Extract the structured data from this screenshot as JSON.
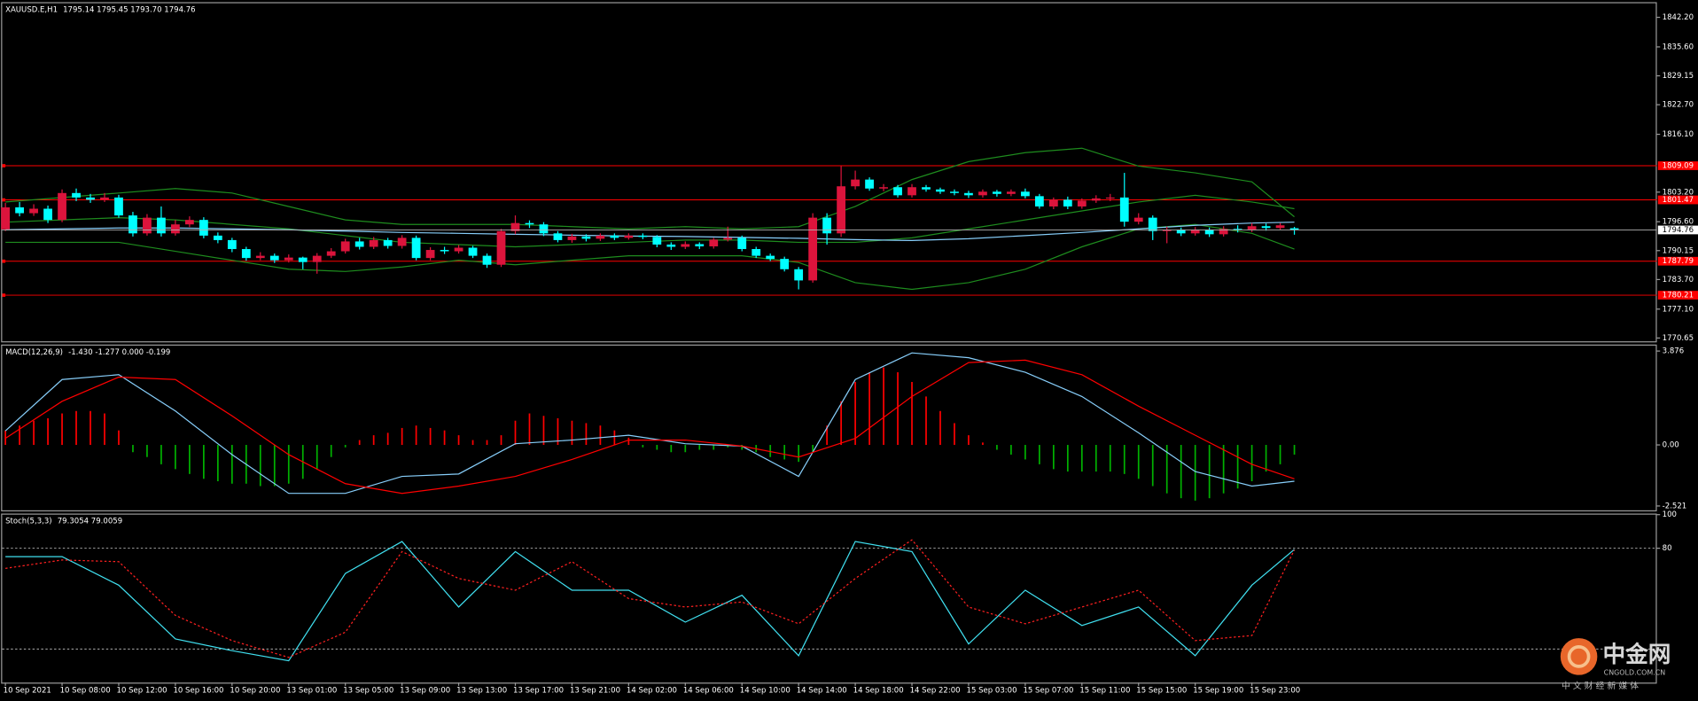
{
  "chart_data": [
    {
      "type": "candlestick",
      "title": "XAUUSD.E,H1",
      "subtitle": "1795.14 1795.45 1793.70 1794.76",
      "categories": [
        "10 Sep 2021",
        null,
        null,
        null,
        "10 Sep 08:00",
        null,
        null,
        null,
        "10 Sep 12:00",
        null,
        null,
        null,
        "10 Sep 16:00",
        null,
        null,
        null,
        "10 Sep 20:00",
        null,
        null,
        null,
        "13 Sep 01:00",
        null,
        null,
        null,
        "13 Sep 05:00",
        null,
        null,
        null,
        "13 Sep 09:00",
        null,
        null,
        null,
        "13 Sep 13:00",
        null,
        null,
        null,
        "13 Sep 17:00",
        null,
        null,
        null,
        "13 Sep 21:00",
        null,
        null,
        null,
        "14 Sep 02:00",
        null,
        null,
        null,
        "14 Sep 06:00",
        null,
        null,
        null,
        "14 Sep 10:00",
        null,
        null,
        null,
        "14 Sep 14:00",
        null,
        null,
        null,
        "14 Sep 18:00",
        null,
        null,
        null,
        "14 Sep 22:00",
        null,
        null,
        null,
        "15 Sep 03:00",
        null,
        null,
        null,
        "15 Sep 07:00",
        null,
        null,
        null,
        "15 Sep 11:00",
        null,
        null,
        null,
        "15 Sep 15:00",
        null,
        null,
        null,
        "15 Sep 19:00",
        null,
        null,
        null,
        "15 Sep 23:00",
        null,
        null,
        null
      ],
      "open": [
        1794.9,
        1799.8,
        1798.5,
        1799.5,
        1797.0,
        1803.0,
        1802.0,
        1801.5,
        1802.0,
        1798.0,
        1794.0,
        1797.5,
        1794.0,
        1796.0,
        1797.0,
        1793.5,
        1792.5,
        1790.5,
        1788.5,
        1789.0,
        1788.0,
        1788.6,
        1787.6,
        1789.0,
        1790.0,
        1792.2,
        1791.0,
        1792.5,
        1791.2,
        1793.0,
        1788.5,
        1790.3,
        1790.0,
        1790.8,
        1789.0,
        1787.0,
        1794.5,
        1796.3,
        1796.0,
        1794.0,
        1792.5,
        1793.3,
        1792.8,
        1793.5,
        1793.0,
        1793.5,
        1793.2,
        1791.5,
        1791.0,
        1791.6,
        1791.1,
        1792.6,
        1793.0,
        1790.5,
        1789.0,
        1788.3,
        1786.0,
        1783.5,
        1797.5,
        1794.0,
        1804.5,
        1806.0,
        1804.0,
        1804.3,
        1802.5,
        1804.3,
        1803.8,
        1803.3,
        1803.0,
        1802.5,
        1803.3,
        1802.8,
        1803.3,
        1802.3,
        1800.0,
        1801.5,
        1800.0,
        1801.3,
        1801.8,
        1802.0,
        1796.6,
        1797.5,
        1794.5,
        1794.8,
        1794.0,
        1794.8,
        1793.8,
        1795.0,
        1794.8,
        1795.6,
        1795.2,
        1795.14
      ],
      "high": [
        1800.8,
        1801.0,
        1800.5,
        1800.2,
        1803.8,
        1804.0,
        1802.8,
        1803.0,
        1802.6,
        1798.8,
        1798.3,
        1800.0,
        1797.0,
        1797.8,
        1797.6,
        1794.2,
        1793.0,
        1791.0,
        1789.8,
        1789.5,
        1789.3,
        1788.8,
        1789.6,
        1790.7,
        1792.8,
        1793.0,
        1793.2,
        1793.0,
        1793.6,
        1793.5,
        1790.9,
        1791.0,
        1791.4,
        1791.2,
        1789.5,
        1795.0,
        1798.0,
        1796.9,
        1796.5,
        1794.5,
        1793.9,
        1793.8,
        1794.0,
        1794.0,
        1794.0,
        1794.0,
        1793.6,
        1792.0,
        1792.2,
        1792.0,
        1793.0,
        1795.5,
        1793.5,
        1791.0,
        1789.5,
        1788.8,
        1786.5,
        1798.5,
        1798.5,
        1809.0,
        1808.0,
        1806.5,
        1805.0,
        1804.8,
        1805.0,
        1804.8,
        1804.2,
        1803.8,
        1803.5,
        1803.8,
        1803.7,
        1803.8,
        1804.0,
        1802.8,
        1802.0,
        1802.2,
        1801.8,
        1802.5,
        1802.8,
        1807.5,
        1798.5,
        1798.0,
        1795.5,
        1795.3,
        1795.4,
        1795.3,
        1795.6,
        1795.8,
        1796.3,
        1796.2,
        1796.3,
        1795.45
      ],
      "low": [
        1794.5,
        1797.8,
        1797.9,
        1796.3,
        1796.5,
        1801.2,
        1800.8,
        1801.0,
        1797.5,
        1793.3,
        1793.5,
        1793.3,
        1793.5,
        1795.4,
        1792.9,
        1791.8,
        1789.8,
        1787.9,
        1788.0,
        1787.4,
        1787.5,
        1786.0,
        1785.0,
        1788.5,
        1789.5,
        1790.4,
        1790.5,
        1790.6,
        1790.6,
        1788.0,
        1788.0,
        1789.4,
        1789.5,
        1788.5,
        1786.3,
        1786.5,
        1793.8,
        1795.2,
        1793.4,
        1792.0,
        1791.9,
        1792.2,
        1792.3,
        1792.5,
        1792.6,
        1792.7,
        1790.9,
        1790.3,
        1790.5,
        1790.5,
        1790.6,
        1792.2,
        1790.0,
        1788.5,
        1787.8,
        1785.5,
        1781.5,
        1783.0,
        1791.5,
        1793.2,
        1803.8,
        1803.5,
        1803.4,
        1802.0,
        1802.0,
        1803.3,
        1802.8,
        1802.5,
        1801.9,
        1802.0,
        1802.2,
        1802.3,
        1801.8,
        1799.5,
        1799.4,
        1799.4,
        1799.5,
        1800.8,
        1801.2,
        1795.5,
        1796.0,
        1792.5,
        1791.8,
        1793.4,
        1793.5,
        1793.2,
        1793.3,
        1794.2,
        1794.3,
        1794.6,
        1794.8,
        1793.7
      ],
      "close": [
        1799.8,
        1798.5,
        1799.5,
        1797.0,
        1803.0,
        1802.0,
        1801.5,
        1802.0,
        1798.0,
        1794.0,
        1797.5,
        1794.0,
        1796.0,
        1797.0,
        1793.5,
        1792.5,
        1790.5,
        1788.5,
        1789.0,
        1788.0,
        1788.6,
        1787.6,
        1789.0,
        1790.0,
        1792.2,
        1791.0,
        1792.5,
        1791.2,
        1793.0,
        1788.5,
        1790.3,
        1790.0,
        1790.8,
        1789.0,
        1787.0,
        1794.5,
        1796.3,
        1796.0,
        1794.0,
        1792.5,
        1793.3,
        1792.8,
        1793.5,
        1793.0,
        1793.5,
        1793.2,
        1791.5,
        1791.0,
        1791.6,
        1791.1,
        1792.6,
        1793.0,
        1790.5,
        1789.0,
        1788.3,
        1786.0,
        1783.5,
        1797.5,
        1794.0,
        1804.5,
        1806.0,
        1804.0,
        1804.3,
        1802.5,
        1804.3,
        1803.8,
        1803.3,
        1803.0,
        1802.5,
        1803.3,
        1802.8,
        1803.3,
        1802.3,
        1800.0,
        1801.5,
        1800.0,
        1801.3,
        1801.8,
        1802.0,
        1796.6,
        1797.5,
        1794.5,
        1794.8,
        1794.0,
        1794.8,
        1793.8,
        1795.0,
        1794.8,
        1795.6,
        1795.2,
        1795.8,
        1794.76
      ],
      "up_color": "#dc143c",
      "down_color": "#00ffff",
      "overlays": [
        {
          "color": "#1e8c1e",
          "x": [
            0,
            4,
            8,
            12,
            16,
            20,
            24,
            28,
            32,
            36,
            40,
            44,
            48,
            52,
            56,
            60,
            64,
            68,
            72,
            76,
            80,
            84,
            88,
            91
          ],
          "values": [
            1801,
            1802,
            1803,
            1804,
            1803,
            1800,
            1797,
            1796,
            1796,
            1796,
            1795.5,
            1795,
            1795.5,
            1795,
            1795.5,
            1800,
            1806,
            1810,
            1812,
            1813,
            1809,
            1807.5,
            1805.5,
            1797.7
          ]
        },
        {
          "color": "#1e8c1e",
          "x": [
            0,
            4,
            8,
            12,
            16,
            20,
            24,
            28,
            32,
            36,
            40,
            44,
            48,
            52,
            56,
            60,
            64,
            68,
            72,
            76,
            80,
            84,
            88,
            91
          ],
          "values": [
            1796.5,
            1797,
            1797.5,
            1797,
            1796,
            1795,
            1793.5,
            1792,
            1791.5,
            1791,
            1791.5,
            1792,
            1792.5,
            1792.5,
            1792,
            1792,
            1793,
            1795,
            1797,
            1799,
            1801,
            1802.5,
            1801,
            1799.5
          ]
        },
        {
          "color": "#1e8c1e",
          "x": [
            0,
            4,
            8,
            12,
            16,
            20,
            24,
            28,
            32,
            36,
            40,
            44,
            48,
            52,
            56,
            60,
            64,
            68,
            72,
            76,
            80,
            84,
            88,
            91
          ],
          "values": [
            1792,
            1792,
            1792,
            1790,
            1788,
            1786,
            1785.5,
            1786.5,
            1788,
            1787,
            1788,
            1789,
            1789,
            1789,
            1787.5,
            1783,
            1781.5,
            1783,
            1786,
            1791,
            1795,
            1796,
            1794,
            1790.5
          ]
        },
        {
          "color": "#87cefa",
          "x": [
            0,
            4,
            8,
            12,
            16,
            20,
            24,
            28,
            32,
            36,
            40,
            44,
            48,
            52,
            56,
            60,
            64,
            68,
            72,
            76,
            80,
            84,
            88,
            91
          ],
          "values": [
            1794.8,
            1795.0,
            1795.2,
            1795.2,
            1795.0,
            1794.8,
            1794.5,
            1794.2,
            1794.0,
            1793.8,
            1793.6,
            1793.4,
            1793.3,
            1793.1,
            1792.9,
            1792.6,
            1792.4,
            1792.8,
            1793.5,
            1794.2,
            1795.0,
            1795.8,
            1796.3,
            1796.5
          ]
        }
      ],
      "levels": [
        1809.09,
        1801.47,
        1787.79,
        1780.21
      ],
      "level_color": "#ff0000",
      "last_price": 1794.76,
      "ylim": [
        1769.92,
        1845.34
      ],
      "yticks": [
        {
          "value": 1842.2,
          "label": "1842.20"
        },
        {
          "value": 1835.6,
          "label": "1835.60"
        },
        {
          "value": 1829.15,
          "label": "1829.15"
        },
        {
          "value": 1822.7,
          "label": "1822.70"
        },
        {
          "value": 1816.1,
          "label": "1816.10"
        },
        {
          "value": 1803.2,
          "label": "1803.20"
        },
        {
          "value": 1796.6,
          "label": "1796.60"
        },
        {
          "value": 1790.15,
          "label": "1790.15"
        },
        {
          "value": 1783.7,
          "label": "1783.70"
        },
        {
          "value": 1777.1,
          "label": "1777.10"
        },
        {
          "value": 1770.65,
          "label": "1770.65"
        }
      ]
    },
    {
      "type": "macd",
      "title": "MACD(12,26,9)",
      "subtitle": "-1.430 -1.277 0.000 -0.199",
      "histogram": [
        0.6,
        0.8,
        1.0,
        1.1,
        1.3,
        1.4,
        1.4,
        1.3,
        0.6,
        -0.3,
        -0.5,
        -0.8,
        -1.0,
        -1.2,
        -1.4,
        -1.5,
        -1.6,
        -1.6,
        -1.7,
        -1.7,
        -1.6,
        -1.4,
        -1.0,
        -0.5,
        -0.1,
        0.2,
        0.4,
        0.5,
        0.7,
        0.8,
        0.7,
        0.6,
        0.4,
        0.2,
        0.2,
        0.4,
        1.0,
        1.3,
        1.2,
        1.1,
        1.0,
        0.9,
        0.8,
        0.6,
        0.3,
        -0.1,
        -0.2,
        -0.3,
        -0.3,
        -0.2,
        -0.2,
        -0.1,
        -0.2,
        -0.3,
        -0.5,
        -0.6,
        -0.7,
        -0.3,
        0.8,
        1.8,
        2.6,
        3.0,
        3.2,
        3.0,
        2.6,
        2.0,
        1.4,
        0.9,
        0.4,
        0.1,
        -0.2,
        -0.4,
        -0.6,
        -0.8,
        -1.0,
        -1.1,
        -1.1,
        -1.1,
        -1.1,
        -1.2,
        -1.4,
        -1.7,
        -2.0,
        -2.2,
        -2.3,
        -2.2,
        -2.0,
        -1.8,
        -1.5,
        -1.1,
        -0.8,
        -0.4
      ],
      "positive_color": "#ff0000",
      "negative_color": "#00b000",
      "series": [
        {
          "color": "#87cefa",
          "x": [
            0,
            4,
            8,
            12,
            16,
            20,
            24,
            28,
            32,
            36,
            40,
            44,
            48,
            52,
            56,
            60,
            64,
            68,
            72,
            76,
            80,
            84,
            88,
            91
          ],
          "values": [
            0.58,
            2.7,
            2.9,
            1.4,
            -0.4,
            -2.0,
            -2.0,
            -1.3,
            -1.2,
            0.05,
            0.2,
            0.4,
            0.05,
            -0.05,
            -1.3,
            2.7,
            3.8,
            3.6,
            3.0,
            2.0,
            0.5,
            -1.1,
            -1.7,
            -1.5
          ]
        },
        {
          "color": "#ff0000",
          "x": [
            0,
            4,
            8,
            12,
            16,
            20,
            24,
            28,
            32,
            36,
            40,
            44,
            48,
            52,
            56,
            60,
            64,
            68,
            72,
            76,
            80,
            84,
            88,
            91
          ],
          "values": [
            0.27,
            1.8,
            2.8,
            2.7,
            1.2,
            -0.4,
            -1.6,
            -2.0,
            -1.7,
            -1.3,
            -0.6,
            0.2,
            0.2,
            -0.05,
            -0.5,
            0.27,
            2.0,
            3.4,
            3.5,
            2.9,
            1.6,
            0.4,
            -0.8,
            -1.4
          ]
        }
      ],
      "ylim": [
        -2.7,
        4.1
      ],
      "yticks": [
        3.876,
        {
          "value": 0,
          "label": "0.00"
        },
        -2.521
      ]
    },
    {
      "type": "stochastic",
      "title": "Stoch(5,3,3)",
      "subtitle": "79.3054 79.0059",
      "levels": [
        80,
        20
      ],
      "series": [
        {
          "color": "#40e0f0",
          "dash": false,
          "x": [
            0,
            4,
            8,
            12,
            16,
            20,
            24,
            28,
            32,
            36,
            40,
            44,
            48,
            52,
            56,
            60,
            64,
            68,
            72,
            76,
            80,
            84,
            88,
            91
          ],
          "values": [
            75,
            75,
            58,
            26,
            19,
            13,
            65,
            84,
            45,
            78,
            55,
            55,
            36,
            52,
            16,
            84,
            78,
            23,
            55,
            34,
            45,
            16,
            58,
            79.3054
          ]
        },
        {
          "color": "#ff2020",
          "dash": true,
          "x": [
            0,
            4,
            8,
            12,
            16,
            20,
            24,
            28,
            32,
            36,
            40,
            44,
            48,
            52,
            56,
            60,
            64,
            68,
            72,
            76,
            80,
            84,
            88,
            91
          ],
          "values": [
            68,
            73,
            72,
            40,
            25,
            15,
            30,
            78,
            62,
            55,
            72,
            50,
            45,
            48,
            35,
            62,
            85,
            45,
            35,
            45,
            55,
            25,
            28,
            79.0059
          ]
        }
      ],
      "ylim": [
        0,
        100
      ],
      "yticks": [
        100,
        80
      ]
    }
  ],
  "watermark": {
    "logo": "中金网",
    "site": "CNGOLD.COM.CN",
    "tagline": "中 文 财 经 新 媒 体"
  }
}
